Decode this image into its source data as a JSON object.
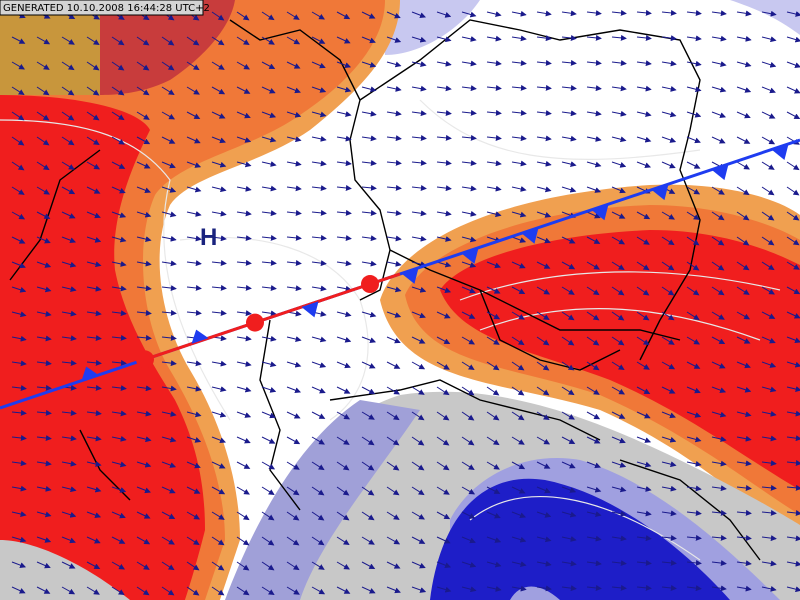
{
  "header": {
    "generated": "GENERATED 10.10.2008 16:44:28 UTC+2"
  },
  "map": {
    "pressure_label": "H"
  }
}
